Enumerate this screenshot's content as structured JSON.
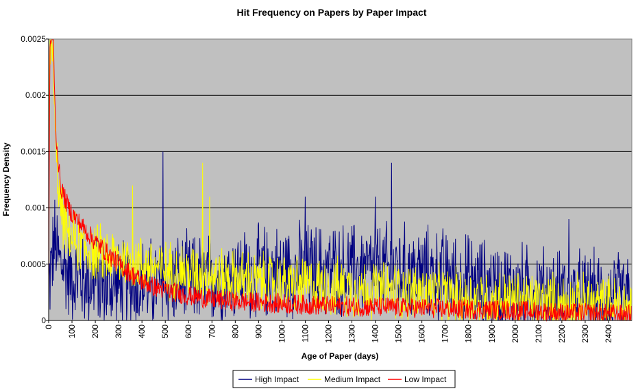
{
  "chart_data": {
    "type": "line",
    "title": "Hit Frequency on Papers by Paper Impact",
    "xlabel": "Age of Paper (days)",
    "ylabel": "Frequency Density",
    "xlim": [
      0,
      2500
    ],
    "ylim": [
      0,
      0.0025
    ],
    "x_ticks": [
      "0",
      "100",
      "200",
      "300",
      "400",
      "500",
      "600",
      "700",
      "800",
      "900",
      "1000",
      "1100",
      "1200",
      "1300",
      "1400",
      "1500",
      "1600",
      "1700",
      "1800",
      "1900",
      "2000",
      "2100",
      "2200",
      "2300",
      "2400"
    ],
    "y_ticks": [
      "0",
      "0.0005",
      "0.001",
      "0.0015",
      "0.002",
      "0.0025"
    ],
    "y_tick_values": [
      0,
      0.0005,
      0.001,
      0.0015,
      0.002,
      0.0025
    ],
    "grid": "horizontal",
    "background": "#c0c0c0",
    "legend_position": "bottom",
    "series": [
      {
        "name": "High Impact",
        "color": "#000080",
        "x": [
          0,
          25,
          50,
          100,
          150,
          200,
          250,
          300,
          350,
          400,
          450,
          500,
          600,
          700,
          800,
          900,
          1000,
          1100,
          1200,
          1300,
          1400,
          1500,
          1600,
          1700,
          1800,
          1900,
          2000,
          2100,
          2200,
          2300,
          2400,
          2500
        ],
        "values": [
          0.0003,
          0.0007,
          0.0005,
          0.0004,
          0.00035,
          0.00035,
          0.0003,
          0.0003,
          0.0003,
          0.00032,
          0.00033,
          0.00035,
          0.00035,
          0.00037,
          0.0004,
          0.00042,
          0.00045,
          0.00045,
          0.00045,
          0.00045,
          0.00045,
          0.00045,
          0.00042,
          0.0004,
          0.00035,
          0.0003,
          0.00028,
          0.00025,
          0.00022,
          0.0002,
          0.0002,
          0.0002
        ],
        "noise": 0.00035,
        "peak_x": [
          490,
          1470,
          1400,
          1100,
          2230
        ],
        "peak_values": [
          0.0015,
          0.0014,
          0.0011,
          0.0011,
          0.0009
        ]
      },
      {
        "name": "Medium Impact",
        "color": "#ffff00",
        "x": [
          0,
          5,
          10,
          20,
          30,
          50,
          75,
          100,
          150,
          200,
          250,
          300,
          400,
          500,
          600,
          700,
          800,
          900,
          1000,
          1100,
          1200,
          1300,
          1400,
          1500,
          1600,
          1700,
          1800,
          1900,
          2000,
          2100,
          2200,
          2300,
          2400,
          2500
        ],
        "values": [
          0.001,
          0.0025,
          0.0025,
          0.0022,
          0.0015,
          0.001,
          0.0008,
          0.00072,
          0.00065,
          0.0006,
          0.00058,
          0.00055,
          0.0005,
          0.00045,
          0.00043,
          0.0004,
          0.00037,
          0.00035,
          0.00033,
          0.00031,
          0.0003,
          0.00028,
          0.00027,
          0.00026,
          0.00024,
          0.00022,
          0.0002,
          0.00019,
          0.00018,
          0.00017,
          0.00016,
          0.00015,
          0.00014,
          0.00013
        ],
        "noise": 0.00022,
        "peak_x": [
          10,
          20,
          360,
          660,
          690
        ],
        "peak_values": [
          0.0025,
          0.0025,
          0.0012,
          0.0014,
          0.0011
        ]
      },
      {
        "name": "Low Impact",
        "color": "#ff0000",
        "x": [
          0,
          5,
          10,
          20,
          30,
          50,
          75,
          100,
          150,
          200,
          250,
          300,
          350,
          400,
          450,
          500,
          600,
          700,
          800,
          900,
          1000,
          1200,
          1400,
          1600,
          1800,
          2000,
          2200,
          2400,
          2500
        ],
        "values": [
          0.0002,
          0.0024,
          0.0025,
          0.0025,
          0.0017,
          0.0012,
          0.00105,
          0.00095,
          0.00082,
          0.0007,
          0.0006,
          0.0005,
          0.00042,
          0.00035,
          0.0003,
          0.00027,
          0.00022,
          0.00019,
          0.00017,
          0.00016,
          0.00015,
          0.00013,
          0.00012,
          0.00011,
          0.0001,
          9e-05,
          7e-05,
          6e-05,
          5e-05
        ],
        "noise": 9e-05
      }
    ]
  }
}
